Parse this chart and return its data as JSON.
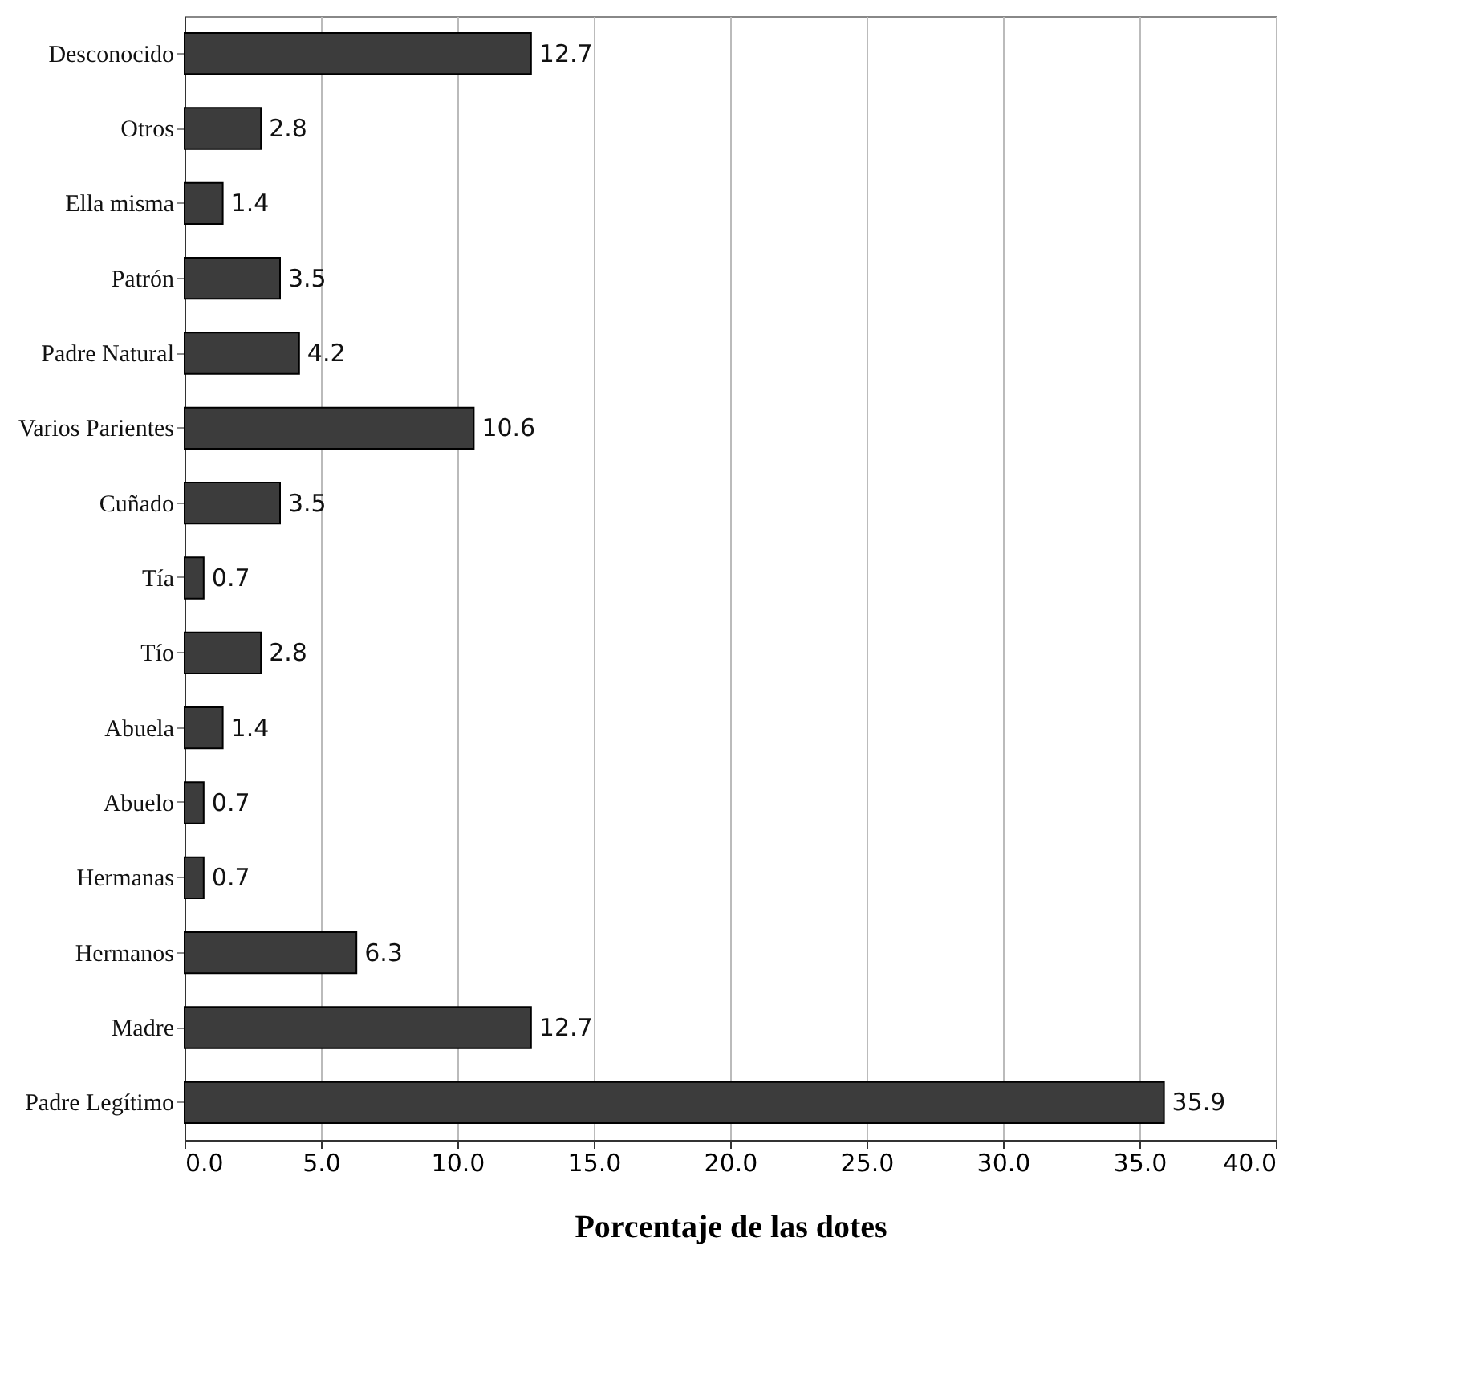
{
  "chart_data": {
    "type": "bar",
    "orientation": "horizontal",
    "xlabel": "Porcentaje de las dotes",
    "categories": [
      "Desconocido",
      "Otros",
      "Ella misma",
      "Patrón",
      "Padre Natural",
      "Varios Parientes",
      "Cuñado",
      "Tía",
      "Tío",
      "Abuela",
      "Abuelo",
      "Hermanas",
      "Hermanos",
      "Madre",
      "Padre Legítimo"
    ],
    "values": [
      12.7,
      2.8,
      1.4,
      3.5,
      4.2,
      10.6,
      3.5,
      0.7,
      2.8,
      1.4,
      0.7,
      0.7,
      6.3,
      12.7,
      35.9
    ],
    "color": "#3c3c3c",
    "data_labels": true,
    "grid": "x",
    "xlim": [
      0,
      40
    ],
    "xticks": [
      {
        "value": 0,
        "label": "0.0"
      },
      {
        "value": 5,
        "label": "5.0"
      },
      {
        "value": 10,
        "label": "10.0"
      },
      {
        "value": 15,
        "label": "15.0"
      },
      {
        "value": 20,
        "label": "20.0"
      },
      {
        "value": 25,
        "label": "25.0"
      },
      {
        "value": 30,
        "label": "30.0"
      },
      {
        "value": 35,
        "label": "35.0"
      },
      {
        "value": 40,
        "label": "40.0"
      }
    ]
  }
}
